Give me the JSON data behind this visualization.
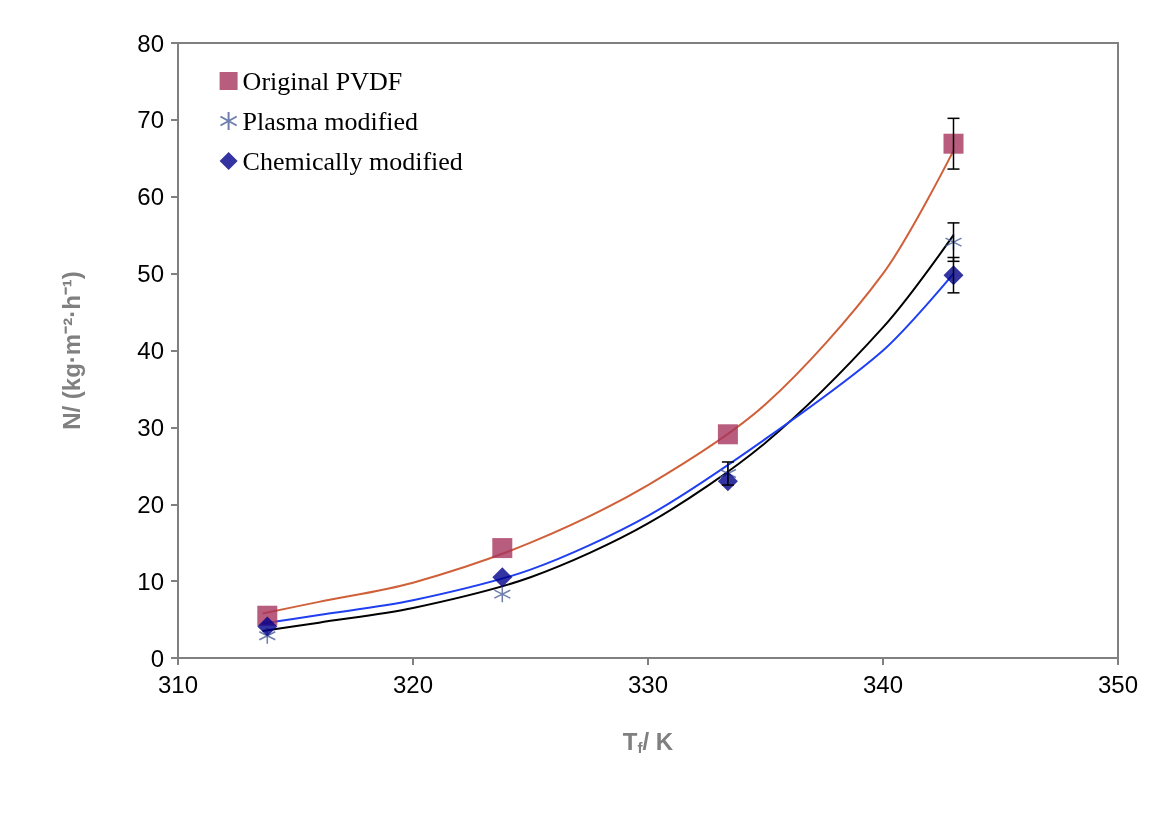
{
  "chart_data": {
    "type": "scatter",
    "xlabel": "T$_{f}$/ K",
    "ylabel": "N/ (kg·m⁻²·h⁻¹)",
    "xlim": [
      310,
      350
    ],
    "xticks": [
      310,
      320,
      330,
      340,
      350
    ],
    "ylim": [
      0,
      80
    ],
    "yticks": [
      0,
      10,
      20,
      30,
      40,
      50,
      60,
      70,
      80
    ],
    "grid": false,
    "legend": "top left",
    "series": [
      {
        "type": "line",
        "color": "#d0603a",
        "marker": "none",
        "x": [
          313.6,
          316,
          320,
          325,
          330,
          335,
          340,
          343
        ],
        "values": [
          5.8,
          7.3,
          9.8,
          15,
          22.5,
          33,
          50,
          66
        ]
      },
      {
        "type": "line",
        "color": "#000000",
        "marker": "none",
        "x": [
          313.6,
          316,
          320,
          325,
          330,
          335,
          340,
          343
        ],
        "values": [
          3.5,
          4.6,
          6.5,
          10.5,
          17.5,
          28,
          43,
          55
        ]
      },
      {
        "type": "line",
        "color": "#1f3ff0",
        "marker": "none",
        "x": [
          313.6,
          316,
          320,
          325,
          330,
          335,
          340,
          343
        ],
        "values": [
          4.5,
          5.6,
          7.5,
          11.5,
          18.5,
          28.5,
          40,
          50
        ]
      },
      {
        "name": "Original PVDF",
        "color": "#a6345e",
        "marker": "square",
        "x": [
          313.8,
          323.8,
          333.4,
          343
        ],
        "values": [
          5.5,
          14.3,
          29.1,
          66.9
        ],
        "errors": [
          null,
          null,
          null,
          3.3
        ]
      },
      {
        "name": "Plasma modified",
        "color": "#4a5f9a",
        "marker": "cross",
        "x": [
          313.8,
          323.8,
          333.4,
          343
        ],
        "values": [
          2.9,
          8.3,
          24,
          54.1
        ],
        "errors": [
          null,
          null,
          1.5,
          2.5
        ]
      },
      {
        "name": "Chemically modified",
        "color": "#00008b",
        "marker": "diamond",
        "x": [
          313.8,
          323.8,
          333.4,
          343
        ],
        "values": [
          4.1,
          10.5,
          23,
          49.8
        ],
        "errors": [
          null,
          null,
          null,
          2.3
        ]
      }
    ]
  }
}
